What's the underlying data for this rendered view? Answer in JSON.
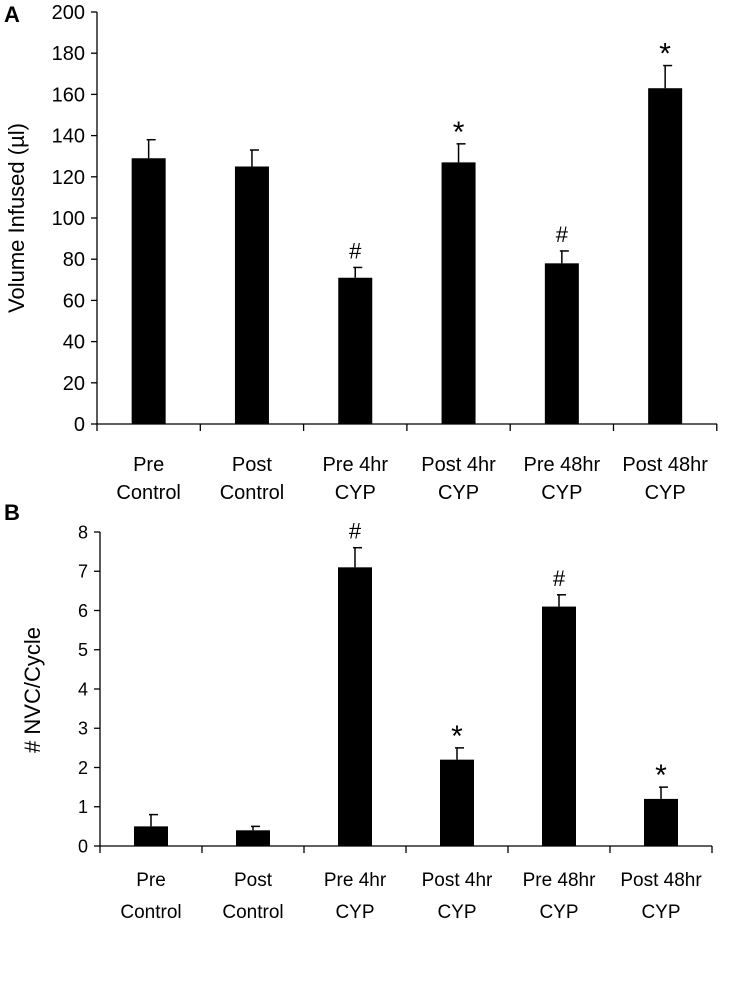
{
  "chart_data": [
    {
      "panel_label": "A",
      "type": "bar",
      "title": "",
      "xlabel": "",
      "ylabel": "Volume Infused (µl)",
      "ylim": [
        0,
        200
      ],
      "yticks": [
        0,
        20,
        40,
        60,
        80,
        100,
        120,
        140,
        160,
        180,
        200
      ],
      "categories": [
        [
          "Pre",
          "Control"
        ],
        [
          "Post",
          "Control"
        ],
        [
          "Pre 4hr",
          "CYP"
        ],
        [
          "Post 4hr",
          "CYP"
        ],
        [
          "Pre 48hr",
          "CYP"
        ],
        [
          "Post 48hr",
          "CYP"
        ]
      ],
      "values": [
        129,
        125,
        71,
        127,
        78,
        163
      ],
      "errors": [
        9,
        8,
        5,
        9,
        6,
        11
      ],
      "annotations": [
        "",
        "",
        "#",
        "*",
        "#",
        "*"
      ],
      "bar_color": "#000000",
      "grid": false
    },
    {
      "panel_label": "B",
      "type": "bar",
      "title": "",
      "xlabel": "",
      "ylabel": "# NVC/Cycle",
      "ylim": [
        0,
        8
      ],
      "yticks": [
        0,
        1,
        2,
        3,
        4,
        5,
        6,
        7,
        8
      ],
      "categories": [
        [
          "Pre",
          "Control"
        ],
        [
          "Post",
          "Control"
        ],
        [
          "Pre 4hr",
          "CYP"
        ],
        [
          "Post 4hr",
          "CYP"
        ],
        [
          "Pre 48hr",
          "CYP"
        ],
        [
          "Post 48hr",
          "CYP"
        ]
      ],
      "values": [
        0.5,
        0.4,
        7.1,
        2.2,
        6.1,
        1.2
      ],
      "errors": [
        0.3,
        0.1,
        0.5,
        0.3,
        0.3,
        0.3
      ],
      "annotations": [
        "",
        "",
        "#",
        "*",
        "#",
        "*"
      ],
      "bar_color": "#000000",
      "grid": false
    }
  ]
}
